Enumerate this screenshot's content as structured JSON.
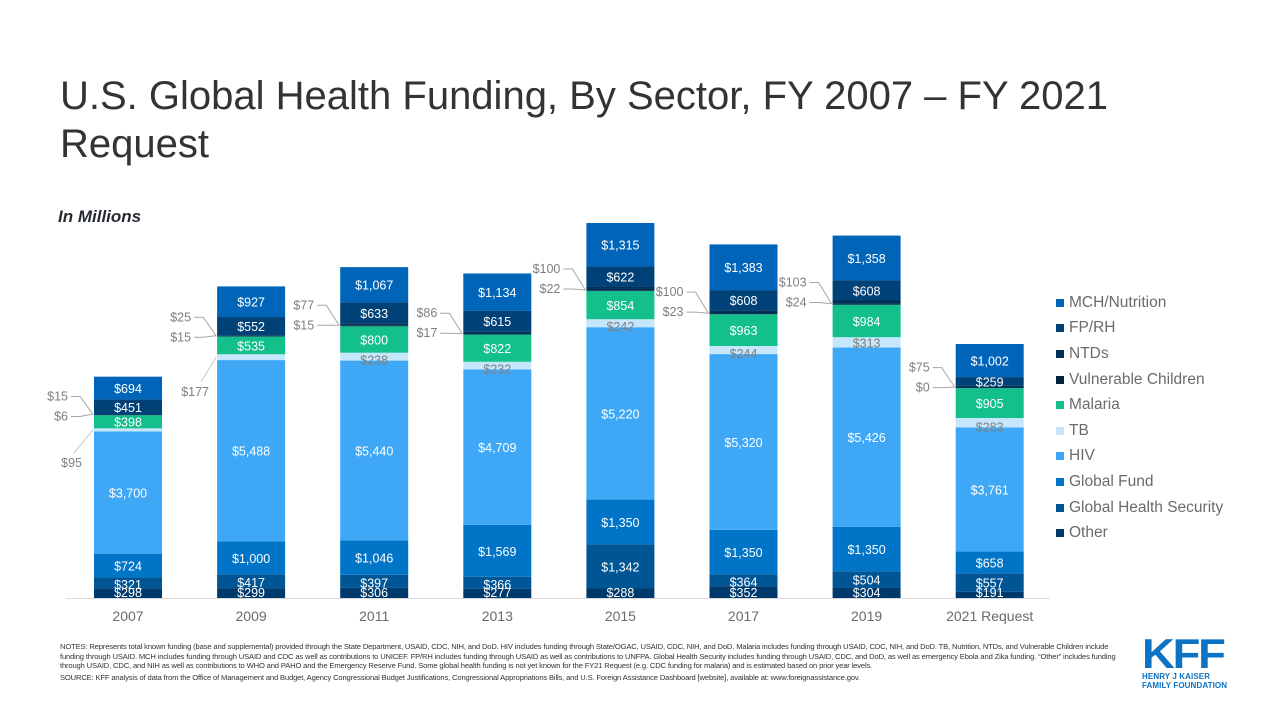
{
  "slide": {
    "title": "U.S. Global Health Funding, By Sector, FY 2007 – FY 2021 Request",
    "units_label": "In Millions",
    "notes": "NOTES: Represents total known funding (base and supplemental) provided through the State Department, USAID, CDC, NIH, and DoD. HIV includes funding through State/OGAC, USAID, CDC, NIH, and DoD. Malaria includes funding through USAID, CDC, NIH, and DoD. TB, Nutrition, NTDs, and Vulnerable Children include funding through USAID. MCH includes funding through USAID and CDC as well as contributions to UNICEF. FP/RH includes funding through USAID as well as contributions to UNFPA. Global Health Security includes funding through USAID, CDC, and DoD, as well as emergency Ebola and Zika funding. “Other” includes funding through USAID, CDC, and NIH as well as contributions to WHO and PAHO and the Emergency Reserve Fund. Some global health funding is not yet known for the FY21 Request (e.g. CDC funding for malaria) and is estimated based on prior year levels.",
    "source": "SOURCE: KFF analysis of data from the Office of Management and Budget, Agency Congressional Budget Justifications, Congressional Appropriations Bills, and U.S. Foreign Assistance Dashboard [website], available at: www.foreignassistance.gov.",
    "logo": {
      "mark": "KFF",
      "line1": "HENRY J KAISER",
      "line2": "FAMILY FOUNDATION",
      "color": "#0b72c4"
    }
  },
  "chart_data": {
    "type": "bar",
    "stacked": true,
    "title": "U.S. Global Health Funding, By Sector, FY 2007 – FY 2021 Request",
    "ylabel": "In Millions",
    "xlabel": "",
    "value_prefix": "$",
    "categories": [
      "2007",
      "2009",
      "2011",
      "2013",
      "2015",
      "2017",
      "2019",
      "2021 Request"
    ],
    "legend_position": "right",
    "grid": false,
    "series": [
      {
        "name": "Other",
        "color": "#003a6c",
        "values": [
          298,
          299,
          306,
          277,
          288,
          352,
          304,
          191
        ]
      },
      {
        "name": "Global Health Security",
        "color": "#005595",
        "values": [
          321,
          417,
          397,
          366,
          1342,
          364,
          504,
          557
        ]
      },
      {
        "name": "Global Fund",
        "color": "#0074c6",
        "values": [
          724,
          1000,
          1046,
          1569,
          1350,
          1350,
          1350,
          658
        ]
      },
      {
        "name": "HIV",
        "color": "#3ea8f7",
        "values": [
          3700,
          5488,
          5440,
          4709,
          5220,
          5320,
          5426,
          3761
        ]
      },
      {
        "name": "TB",
        "color": "#c5e6fb",
        "values": [
          95,
          177,
          238,
          232,
          242,
          244,
          313,
          283
        ]
      },
      {
        "name": "Malaria",
        "color": "#13bf8b",
        "values": [
          398,
          535,
          800,
          822,
          854,
          963,
          984,
          905
        ]
      },
      {
        "name": "Vulnerable Children",
        "color": "#00233f",
        "values": [
          6,
          15,
          15,
          17,
          22,
          23,
          24,
          0
        ]
      },
      {
        "name": "NTDs",
        "color": "#003259",
        "values": [
          15,
          25,
          77,
          86,
          100,
          100,
          103,
          75
        ]
      },
      {
        "name": "FP/RH",
        "color": "#004178",
        "values": [
          451,
          552,
          633,
          615,
          622,
          608,
          608,
          259
        ]
      },
      {
        "name": "MCH/Nutrition",
        "color": "#0065b8",
        "values": [
          694,
          927,
          1067,
          1134,
          1315,
          1383,
          1358,
          1002
        ]
      }
    ],
    "legend_order": [
      "MCH/Nutrition",
      "FP/RH",
      "NTDs",
      "Vulnerable Children",
      "Malaria",
      "TB",
      "HIV",
      "Global Fund",
      "Global Health Security",
      "Other"
    ],
    "outside_label_series": [
      "TB",
      "Vulnerable Children",
      "NTDs"
    ],
    "ylim": [
      0,
      11355
    ]
  }
}
